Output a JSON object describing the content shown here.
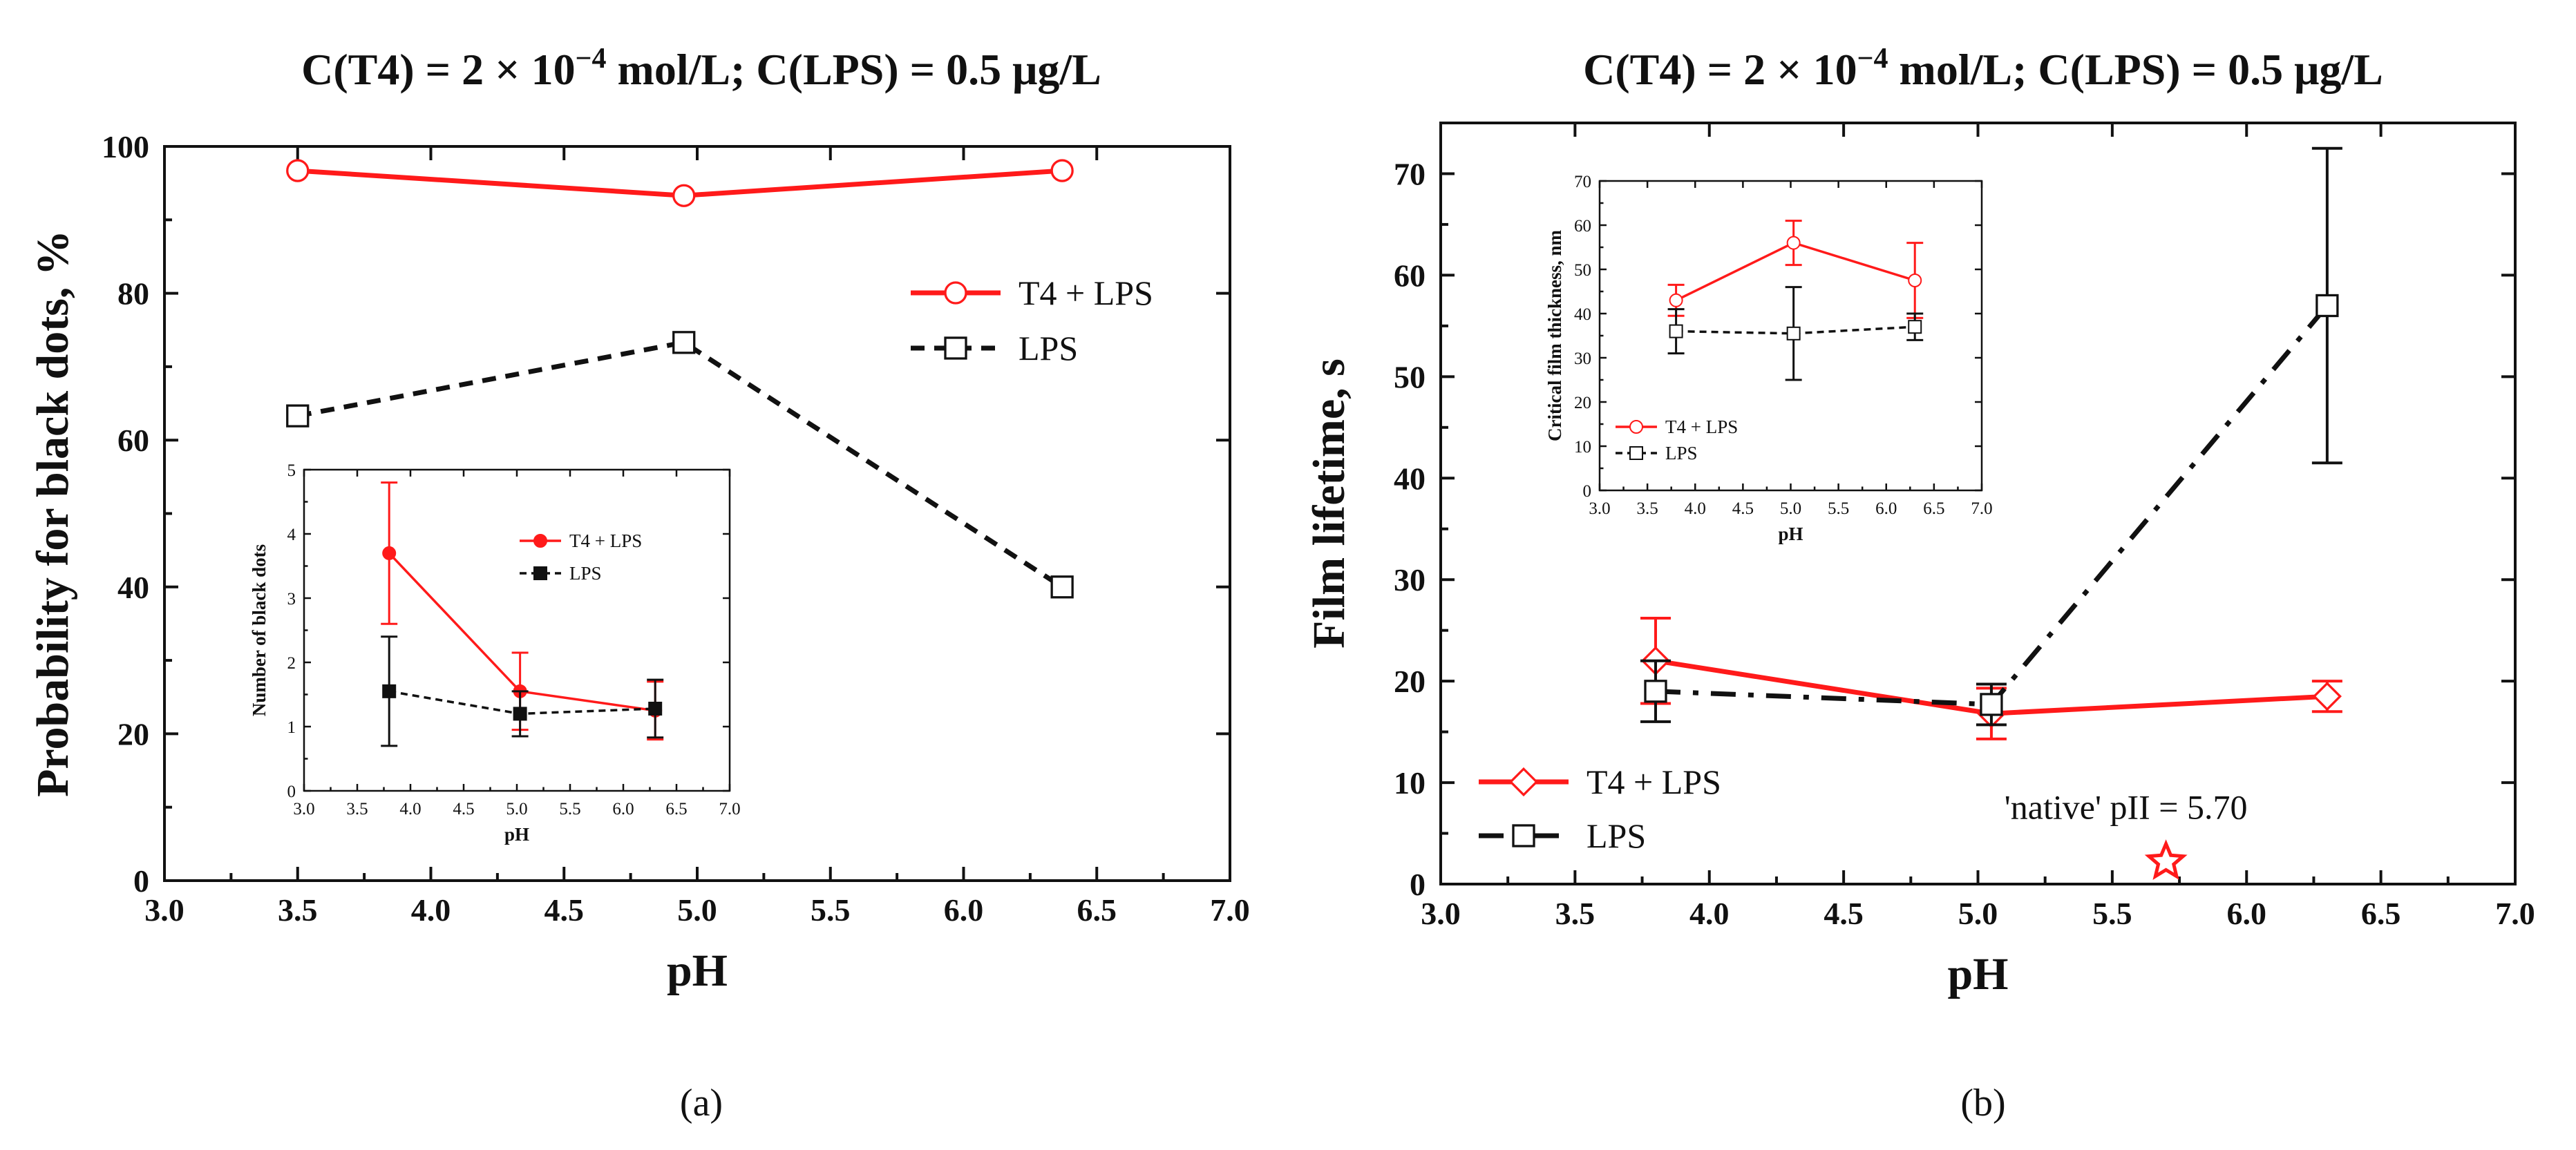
{
  "colors": {
    "t4_lps": "#ff1a1a",
    "lps": "#111111",
    "axis": "#111111"
  },
  "chart_data": [
    {
      "id": "a",
      "panel_label": "(a)",
      "type": "line",
      "title": "C(T4) = 2 × 10⁻⁴ mol/L; C(LPS) = 0.5 μg/L",
      "title_parts": {
        "pre": "C(T4) = 2 × 10",
        "sup": "−4",
        "post": " mol/L; C(LPS) = 0.5 μg/L"
      },
      "xlabel": "pH",
      "ylabel": "Probability for black dots, %",
      "xlim": [
        3.0,
        7.0
      ],
      "ylim": [
        0,
        100
      ],
      "xticks": [
        "3.0",
        "3.5",
        "4.0",
        "4.5",
        "5.0",
        "5.5",
        "6.0",
        "6.5",
        "7.0"
      ],
      "yticks": [
        "0",
        "20",
        "40",
        "60",
        "80",
        "100"
      ],
      "legend_position": "right-middle",
      "series": [
        {
          "name": "T4 + LPS",
          "style": "solid-red-circle",
          "x": [
            3.5,
            4.95,
            6.37
          ],
          "y": [
            96.7,
            93.3,
            96.7
          ]
        },
        {
          "name": "LPS",
          "style": "dashed-black-square",
          "x": [
            3.5,
            4.95,
            6.37
          ],
          "y": [
            63.3,
            73.3,
            40.0
          ]
        }
      ],
      "inset": {
        "xlabel": "pH",
        "ylabel": "Number of black dots",
        "xlim": [
          3.0,
          7.0
        ],
        "ylim": [
          0,
          5
        ],
        "xticks": [
          "3.0",
          "3.5",
          "4.0",
          "4.5",
          "5.0",
          "5.5",
          "6.0",
          "6.5",
          "7.0"
        ],
        "yticks": [
          "0",
          "1",
          "2",
          "3",
          "4",
          "5"
        ],
        "series": [
          {
            "name": "T4 + LPS",
            "style": "solid-red-filled-circle",
            "x": [
              3.8,
              5.03,
              6.3
            ],
            "y": [
              3.7,
              1.55,
              1.25
            ],
            "err": [
              1.1,
              0.6,
              0.45
            ]
          },
          {
            "name": "LPS",
            "style": "dashed-black-filled-square",
            "x": [
              3.8,
              5.03,
              6.3
            ],
            "y": [
              1.55,
              1.2,
              1.28
            ],
            "err": [
              0.85,
              0.35,
              0.45
            ]
          }
        ]
      }
    },
    {
      "id": "b",
      "panel_label": "(b)",
      "type": "line",
      "title": "C(T4) = 2 × 10⁻⁴ mol/L; C(LPS) = 0.5 μg/L",
      "title_parts": {
        "pre": "C(T4) = 2 × 10",
        "sup": "−4",
        "post": " mol/L; C(LPS) = 0.5 μg/L"
      },
      "xlabel": "pH",
      "ylabel": "Film lifetime, s",
      "xlim": [
        3.0,
        7.0
      ],
      "ylim": [
        0,
        75
      ],
      "xticks": [
        "3.0",
        "3.5",
        "4.0",
        "4.5",
        "5.0",
        "5.5",
        "6.0",
        "6.5",
        "7.0"
      ],
      "yticks": [
        "0",
        "10",
        "20",
        "30",
        "40",
        "50",
        "60",
        "70"
      ],
      "legend_position": "bottom-left",
      "annotation": {
        "text": "'native' pII = 5.70",
        "x": 5.7,
        "y": 2.2,
        "marker": "star"
      },
      "series": [
        {
          "name": "T4 + LPS",
          "style": "solid-red-diamond",
          "x": [
            3.8,
            5.05,
            6.3
          ],
          "y": [
            22.0,
            16.8,
            18.5
          ],
          "err": [
            4.2,
            2.5,
            1.5
          ]
        },
        {
          "name": "LPS",
          "style": "dashdot-black-square",
          "x": [
            3.8,
            5.05,
            6.3
          ],
          "y": [
            19.0,
            17.7,
            57.0
          ],
          "err": [
            3.0,
            2.0,
            15.5
          ]
        }
      ],
      "inset": {
        "xlabel": "pH",
        "ylabel": "Critical film thickness, nm",
        "xlim": [
          3.0,
          7.0
        ],
        "ylim": [
          0,
          70
        ],
        "xticks": [
          "3.0",
          "3.5",
          "4.0",
          "4.5",
          "5.0",
          "5.5",
          "6.0",
          "6.5",
          "7.0"
        ],
        "yticks": [
          "0",
          "10",
          "20",
          "30",
          "40",
          "50",
          "60",
          "70"
        ],
        "series": [
          {
            "name": "T4 + LPS",
            "style": "solid-red-circle",
            "x": [
              3.8,
              5.03,
              6.3
            ],
            "y": [
              43.0,
              56.0,
              47.5
            ],
            "err": [
              3.5,
              5.0,
              8.5
            ]
          },
          {
            "name": "LPS",
            "style": "dashed-black-square",
            "x": [
              3.8,
              5.03,
              6.3
            ],
            "y": [
              36.0,
              35.5,
              37.0
            ],
            "err": [
              5.0,
              10.5,
              3.0
            ]
          }
        ]
      }
    }
  ]
}
